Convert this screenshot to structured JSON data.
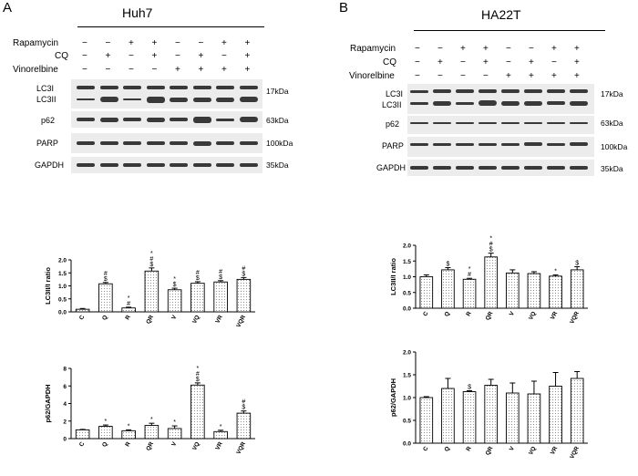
{
  "panels": [
    {
      "letter": "A",
      "cell_line": "Huh7",
      "treatments": [
        {
          "name": "Rapamycin",
          "signs": [
            "−",
            "−",
            "+",
            "+",
            "−",
            "−",
            "+",
            "+"
          ]
        },
        {
          "name": "CQ",
          "signs": [
            "−",
            "+",
            "−",
            "+",
            "−",
            "+",
            "−",
            "+"
          ]
        },
        {
          "name": "Vinorelbine",
          "signs": [
            "−",
            "−",
            "−",
            "−",
            "+",
            "+",
            "+",
            "+"
          ]
        }
      ],
      "proteins": [
        "LC3I",
        "LC3II",
        "p62",
        "PARP",
        "GAPDH"
      ],
      "markers": [
        "17kDa",
        "63kDa",
        "100kDa",
        "35kDa"
      ]
    },
    {
      "letter": "B",
      "cell_line": "HA22T",
      "treatments": [
        {
          "name": "Rapamycin",
          "signs": [
            "−",
            "−",
            "+",
            "+",
            "−",
            "−",
            "+",
            "+"
          ]
        },
        {
          "name": "CQ",
          "signs": [
            "−",
            "+",
            "−",
            "+",
            "−",
            "+",
            "−",
            "+"
          ]
        },
        {
          "name": "Vinorelbine",
          "signs": [
            "−",
            "−",
            "−",
            "−",
            "+",
            "+",
            "+",
            "+"
          ]
        }
      ],
      "proteins": [
        "LC3I",
        "LC3II",
        "p62",
        "PARP",
        "GAPDH"
      ],
      "markers": [
        "17kDa",
        "63kDa",
        "100kDa",
        "35kDa"
      ]
    }
  ],
  "chart_data": [
    {
      "type": "bar",
      "panel": "A",
      "ylabel": "LC3II/I ratio",
      "categories": [
        "C",
        "Q",
        "R",
        "QR",
        "V",
        "VQ",
        "VR",
        "VQR"
      ],
      "values": [
        0.1,
        1.08,
        0.15,
        1.57,
        0.85,
        1.1,
        1.15,
        1.25
      ],
      "errors": [
        0.03,
        0.05,
        0.03,
        0.12,
        0.06,
        0.06,
        0.05,
        0.07
      ],
      "annotations": [
        "",
        "#\n$",
        "*\n#",
        "*\n#\n$",
        "*\n$",
        "#\n$",
        "#\n$",
        "#\n$"
      ],
      "ylim": [
        0,
        2.0
      ],
      "yticks": [
        "0.0",
        "0.5",
        "1.0",
        "1.5",
        "2.0"
      ]
    },
    {
      "type": "bar",
      "panel": "A",
      "ylabel": "p62/GAPDH",
      "categories": [
        "C",
        "Q",
        "R",
        "QR",
        "V",
        "VQ",
        "VR",
        "VQR"
      ],
      "values": [
        1.0,
        1.4,
        0.9,
        1.5,
        1.15,
        6.1,
        0.8,
        2.9
      ],
      "errors": [
        0.05,
        0.15,
        0.1,
        0.25,
        0.3,
        0.25,
        0.15,
        0.25
      ],
      "annotations": [
        "",
        "*",
        "*",
        "*",
        "*",
        "*\n#\n$",
        "*",
        "#\n$"
      ],
      "ylim": [
        0,
        8
      ],
      "yticks": [
        "0",
        "2",
        "4",
        "6",
        "8"
      ]
    },
    {
      "type": "bar",
      "panel": "B",
      "ylabel": "LC3II/I ratio",
      "categories": [
        "C",
        "Q",
        "R",
        "QR",
        "V",
        "VQ",
        "VR",
        "VQR"
      ],
      "values": [
        1.0,
        1.22,
        0.92,
        1.63,
        1.12,
        1.1,
        1.02,
        1.22
      ],
      "errors": [
        0.06,
        0.07,
        0.03,
        0.12,
        0.1,
        0.06,
        0.04,
        0.1
      ],
      "annotations": [
        "",
        "$",
        "*\n#",
        "*\n#\n$",
        "",
        "",
        "*",
        "$"
      ],
      "ylim": [
        0,
        2.0
      ],
      "yticks": [
        "0.0",
        "0.5",
        "1.0",
        "1.5",
        "2.0"
      ]
    },
    {
      "type": "bar",
      "panel": "B",
      "ylabel": "p62/GAPDH",
      "categories": [
        "C",
        "Q",
        "R",
        "QR",
        "V",
        "VQ",
        "VR",
        "VQR"
      ],
      "values": [
        1.0,
        1.2,
        1.13,
        1.27,
        1.1,
        1.08,
        1.25,
        1.42
      ],
      "errors": [
        0.02,
        0.22,
        0.02,
        0.13,
        0.22,
        0.28,
        0.3,
        0.15
      ],
      "annotations": [
        "",
        "",
        "$",
        "",
        "",
        "",
        "",
        ""
      ],
      "ylim": [
        0,
        2.0
      ],
      "yticks": [
        "0.0",
        "0.5",
        "1.0",
        "1.5",
        "2.0"
      ]
    }
  ]
}
